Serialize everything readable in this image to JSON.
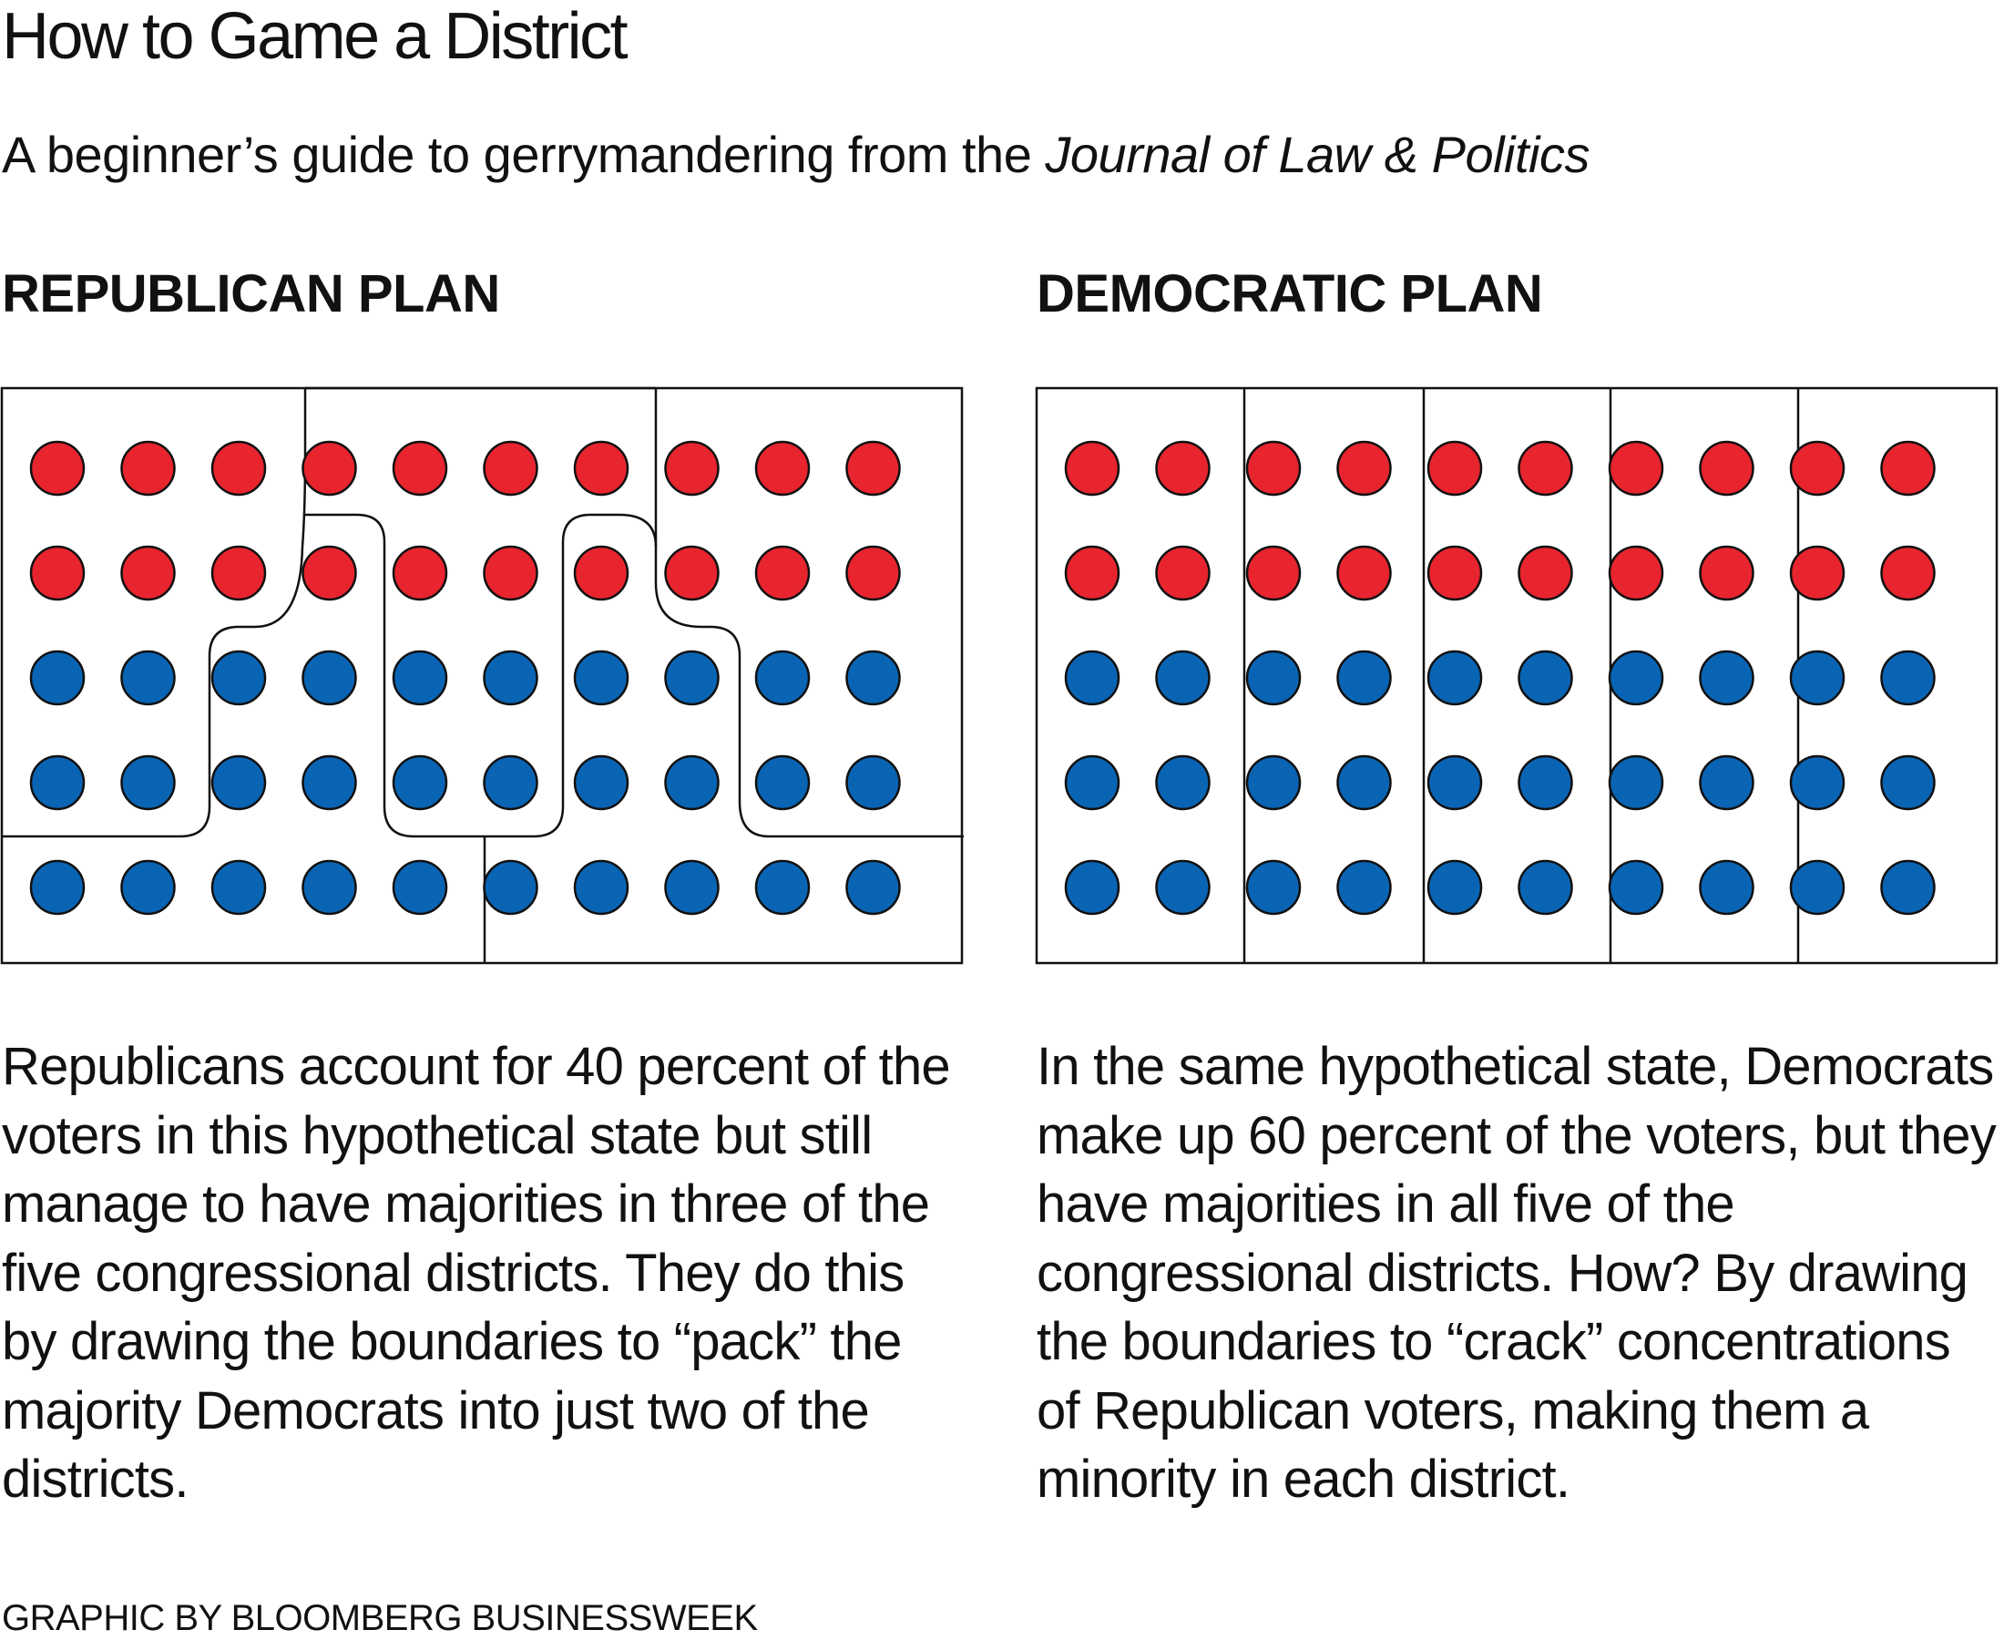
{
  "header": {
    "title": "How to Game a District",
    "subtitle_prefix": "A beginner’s guide to gerrymandering from the ",
    "subtitle_source": "Journal of Law & Politics"
  },
  "colors": {
    "republican": "#E8242E",
    "democrat": "#0A64B4"
  },
  "chart_data": [
    {
      "type": "table",
      "panel": "republican-plan",
      "title": "REPUBLICAN PLAN",
      "grid_rows": 5,
      "grid_cols": 10,
      "voters": [
        [
          "R",
          "R",
          "R",
          "R",
          "R",
          "R",
          "R",
          "R",
          "R",
          "R"
        ],
        [
          "R",
          "R",
          "R",
          "R",
          "R",
          "R",
          "R",
          "R",
          "R",
          "R"
        ],
        [
          "D",
          "D",
          "D",
          "D",
          "D",
          "D",
          "D",
          "D",
          "D",
          "D"
        ],
        [
          "D",
          "D",
          "D",
          "D",
          "D",
          "D",
          "D",
          "D",
          "D",
          "D"
        ],
        [
          "D",
          "D",
          "D",
          "D",
          "D",
          "D",
          "D",
          "D",
          "D",
          "D"
        ]
      ],
      "districts": 5,
      "republican_majority_districts": 3,
      "democratic_majority_districts": 2,
      "description": "Republicans account for 40 percent of the voters in this hypothetical state but still manage to have majorities in three of the five congressional districts. They do this by drawing the boundaries to “pack” the majority Democrats into just two of the districts."
    },
    {
      "type": "table",
      "panel": "democratic-plan",
      "title": "DEMOCRATIC PLAN",
      "grid_rows": 5,
      "grid_cols": 10,
      "voters": [
        [
          "R",
          "R",
          "R",
          "R",
          "R",
          "R",
          "R",
          "R",
          "R",
          "R"
        ],
        [
          "R",
          "R",
          "R",
          "R",
          "R",
          "R",
          "R",
          "R",
          "R",
          "R"
        ],
        [
          "D",
          "D",
          "D",
          "D",
          "D",
          "D",
          "D",
          "D",
          "D",
          "D"
        ],
        [
          "D",
          "D",
          "D",
          "D",
          "D",
          "D",
          "D",
          "D",
          "D",
          "D"
        ],
        [
          "D",
          "D",
          "D",
          "D",
          "D",
          "D",
          "D",
          "D",
          "D",
          "D"
        ]
      ],
      "districts": 5,
      "republican_majority_districts": 0,
      "democratic_majority_districts": 5,
      "description": "In the same hypothetical state, Democrats make up 60 percent of the voters, but they have majorities in all five of the congressional districts. How? By drawing the boundaries to “crack” concentrations of Republican voters, making them a minority in each district."
    }
  ],
  "footer": {
    "credit": "GRAPHIC BY BLOOMBERG BUSINESSWEEK"
  }
}
